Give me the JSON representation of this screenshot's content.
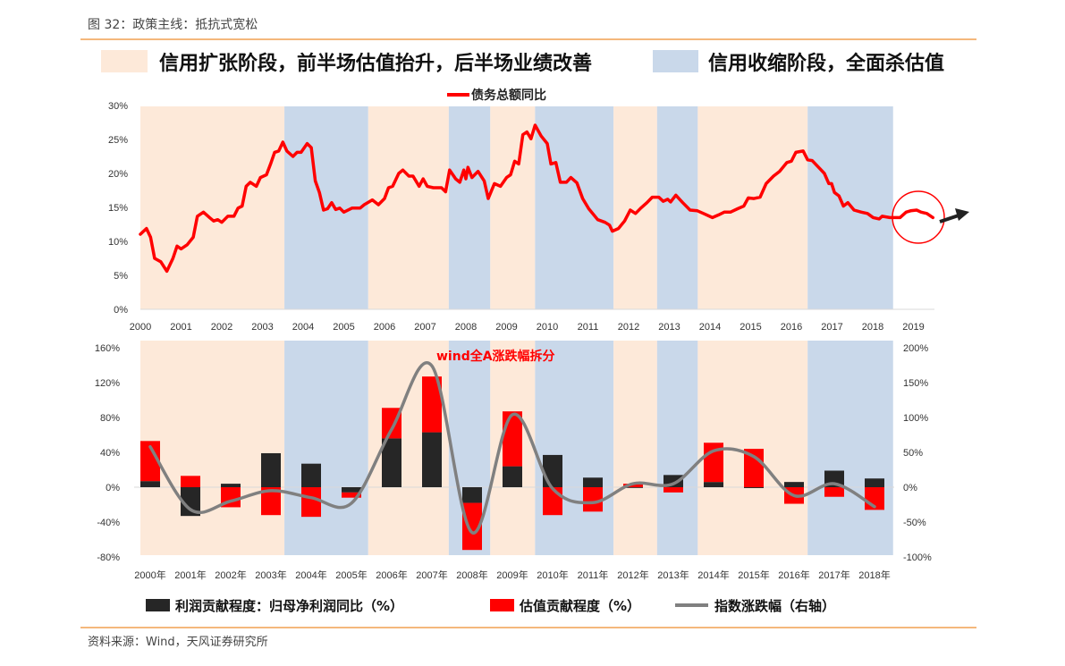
{
  "header": {
    "figure_title": "图 32：政策主线：抵抗式宽松",
    "source": "资料来源：Wind，天风证券研究所"
  },
  "banner": {
    "expansion_label": "信用扩张阶段，前半场估值抬升，后半场业绩改善",
    "contraction_label": "信用收缩阶段，全面杀估值",
    "expansion_color": "#fde9d9",
    "contraction_color": "#c9d8ea"
  },
  "chart_data": [
    {
      "type": "line",
      "legend": "债务总额同比",
      "legend_placement": "top-center",
      "color": "#ff0000",
      "xlim": [
        2000,
        2019.6
      ],
      "ylim": [
        0,
        30
      ],
      "x_ticks": [
        "2000",
        "2001",
        "2002",
        "2003",
        "2004",
        "2005",
        "2006",
        "2007",
        "2008",
        "2009",
        "2010",
        "2011",
        "2012",
        "2013",
        "2014",
        "2015",
        "2016",
        "2017",
        "2018",
        "2019"
      ],
      "y_ticks": [
        "0%",
        "5%",
        "10%",
        "15%",
        "20%",
        "25%",
        "30%"
      ],
      "y_unit": "%",
      "grid": false,
      "shaded_periods": [
        {
          "phase": "expansion",
          "from": 2000,
          "to": 2003.54
        },
        {
          "phase": "contraction",
          "from": 2003.54,
          "to": 2005.6
        },
        {
          "phase": "expansion",
          "from": 2005.6,
          "to": 2007.58
        },
        {
          "phase": "contraction",
          "from": 2007.58,
          "to": 2008.6
        },
        {
          "phase": "expansion",
          "from": 2008.6,
          "to": 2009.7
        },
        {
          "phase": "contraction",
          "from": 2009.7,
          "to": 2011.63
        },
        {
          "phase": "expansion",
          "from": 2011.63,
          "to": 2012.7
        },
        {
          "phase": "contraction",
          "from": 2012.7,
          "to": 2013.7
        },
        {
          "phase": "expansion",
          "from": 2013.7,
          "to": 2016.4
        },
        {
          "phase": "contraction",
          "from": 2016.4,
          "to": 2018.5
        }
      ],
      "points": [
        [
          2000.0,
          11.05
        ],
        [
          2000.15,
          11.9
        ],
        [
          2000.25,
          10.6
        ],
        [
          2000.35,
          7.5
        ],
        [
          2000.5,
          7.0
        ],
        [
          2000.65,
          5.6
        ],
        [
          2000.8,
          7.5
        ],
        [
          2000.9,
          9.3
        ],
        [
          2001.0,
          8.9
        ],
        [
          2001.15,
          9.5
        ],
        [
          2001.3,
          10.6
        ],
        [
          2001.4,
          13.7
        ],
        [
          2001.55,
          14.3
        ],
        [
          2001.7,
          13.5
        ],
        [
          2001.8,
          13.0
        ],
        [
          2001.9,
          13.2
        ],
        [
          2002.0,
          12.8
        ],
        [
          2002.15,
          13.7
        ],
        [
          2002.3,
          13.7
        ],
        [
          2002.4,
          14.9
        ],
        [
          2002.5,
          15.2
        ],
        [
          2002.6,
          18.1
        ],
        [
          2002.7,
          18.7
        ],
        [
          2002.85,
          18.1
        ],
        [
          2002.95,
          19.4
        ],
        [
          2003.1,
          19.8
        ],
        [
          2003.2,
          21.4
        ],
        [
          2003.3,
          23.1
        ],
        [
          2003.4,
          23.3
        ],
        [
          2003.5,
          24.6
        ],
        [
          2003.6,
          23.3
        ],
        [
          2003.75,
          22.5
        ],
        [
          2003.85,
          23.1
        ],
        [
          2003.95,
          23.1
        ],
        [
          2004.1,
          24.4
        ],
        [
          2004.2,
          23.8
        ],
        [
          2004.3,
          18.9
        ],
        [
          2004.4,
          17.2
        ],
        [
          2004.5,
          14.6
        ],
        [
          2004.6,
          14.8
        ],
        [
          2004.7,
          15.7
        ],
        [
          2004.8,
          14.7
        ],
        [
          2004.9,
          14.9
        ],
        [
          2005.0,
          14.3
        ],
        [
          2005.2,
          14.9
        ],
        [
          2005.4,
          14.9
        ],
        [
          2005.5,
          15.4
        ],
        [
          2005.7,
          16.1
        ],
        [
          2005.85,
          15.4
        ],
        [
          2006.0,
          16.3
        ],
        [
          2006.1,
          17.9
        ],
        [
          2006.2,
          18.1
        ],
        [
          2006.35,
          20.0
        ],
        [
          2006.45,
          20.5
        ],
        [
          2006.6,
          19.6
        ],
        [
          2006.7,
          19.6
        ],
        [
          2006.85,
          18.1
        ],
        [
          2006.95,
          19.2
        ],
        [
          2007.05,
          18.1
        ],
        [
          2007.2,
          17.9
        ],
        [
          2007.4,
          17.9
        ],
        [
          2007.5,
          17.3
        ],
        [
          2007.6,
          20.5
        ],
        [
          2007.75,
          19.2
        ],
        [
          2007.85,
          18.7
        ],
        [
          2007.95,
          20.5
        ],
        [
          2008.0,
          19.2
        ],
        [
          2008.05,
          20.9
        ],
        [
          2008.15,
          19.4
        ],
        [
          2008.3,
          20.3
        ],
        [
          2008.45,
          18.9
        ],
        [
          2008.55,
          16.3
        ],
        [
          2008.7,
          18.5
        ],
        [
          2008.85,
          18.1
        ],
        [
          2009.0,
          19.4
        ],
        [
          2009.1,
          19.8
        ],
        [
          2009.2,
          21.8
        ],
        [
          2009.3,
          21.4
        ],
        [
          2009.4,
          25.7
        ],
        [
          2009.5,
          26.1
        ],
        [
          2009.6,
          25.1
        ],
        [
          2009.7,
          27.1
        ],
        [
          2009.85,
          25.5
        ],
        [
          2010.0,
          24.4
        ],
        [
          2010.09,
          21.4
        ],
        [
          2010.21,
          21.6
        ],
        [
          2010.32,
          18.7
        ],
        [
          2010.47,
          18.7
        ],
        [
          2010.58,
          19.4
        ],
        [
          2010.73,
          18.6
        ],
        [
          2010.87,
          16.3
        ],
        [
          2011.02,
          14.8
        ],
        [
          2011.24,
          13.2
        ],
        [
          2011.42,
          12.8
        ],
        [
          2011.53,
          12.4
        ],
        [
          2011.6,
          11.5
        ],
        [
          2011.75,
          11.9
        ],
        [
          2011.9,
          13.0
        ],
        [
          2012.04,
          14.6
        ],
        [
          2012.17,
          14.1
        ],
        [
          2012.3,
          14.9
        ],
        [
          2012.45,
          15.7
        ],
        [
          2012.58,
          16.5
        ],
        [
          2012.74,
          16.5
        ],
        [
          2012.85,
          15.9
        ],
        [
          2012.96,
          16.2
        ],
        [
          2013.03,
          15.8
        ],
        [
          2013.16,
          16.8
        ],
        [
          2013.33,
          15.7
        ],
        [
          2013.51,
          14.6
        ],
        [
          2013.69,
          14.5
        ],
        [
          2013.84,
          14.1
        ],
        [
          2014.06,
          13.5
        ],
        [
          2014.21,
          13.9
        ],
        [
          2014.35,
          14.3
        ],
        [
          2014.5,
          14.3
        ],
        [
          2014.68,
          14.8
        ],
        [
          2014.83,
          15.2
        ],
        [
          2014.94,
          16.4
        ],
        [
          2015.08,
          16.3
        ],
        [
          2015.23,
          16.5
        ],
        [
          2015.38,
          18.5
        ],
        [
          2015.56,
          19.6
        ],
        [
          2015.71,
          20.3
        ],
        [
          2015.89,
          21.6
        ],
        [
          2016.0,
          21.8
        ],
        [
          2016.11,
          23.1
        ],
        [
          2016.29,
          23.3
        ],
        [
          2016.4,
          22.0
        ],
        [
          2016.51,
          21.9
        ],
        [
          2016.7,
          20.7
        ],
        [
          2016.81,
          20.0
        ],
        [
          2016.92,
          18.5
        ],
        [
          2016.99,
          18.5
        ],
        [
          2017.06,
          17.2
        ],
        [
          2017.17,
          16.7
        ],
        [
          2017.28,
          15.2
        ],
        [
          2017.39,
          15.7
        ],
        [
          2017.54,
          14.6
        ],
        [
          2017.72,
          14.3
        ],
        [
          2017.87,
          14.1
        ],
        [
          2018.01,
          13.5
        ],
        [
          2018.16,
          13.3
        ],
        [
          2018.23,
          13.7
        ],
        [
          2018.42,
          13.5
        ],
        [
          2018.67,
          13.5
        ],
        [
          2018.82,
          14.3
        ],
        [
          2018.93,
          14.5
        ],
        [
          2019.08,
          14.6
        ],
        [
          2019.19,
          14.3
        ],
        [
          2019.33,
          14.1
        ],
        [
          2019.48,
          13.5
        ]
      ],
      "annotation": "circle around 2019 values with arrow pointing up-right"
    },
    {
      "type": "bar",
      "title": "wind全A涨跌幅拆分",
      "stacked": true,
      "categories": [
        "2000年",
        "2001年",
        "2002年",
        "2003年",
        "2004年",
        "2005年",
        "2006年",
        "2007年",
        "2008年",
        "2009年",
        "2010年",
        "2011年",
        "2012年",
        "2013年",
        "2014年",
        "2015年",
        "2016年",
        "2017年",
        "2018年"
      ],
      "ylim_left": [
        -80,
        160
      ],
      "y_ticks_left": [
        "-80%",
        "-40%",
        "0%",
        "40%",
        "80%",
        "120%",
        "160%"
      ],
      "ylim_right": [
        -100,
        200
      ],
      "y_ticks_right": [
        "-100%",
        "-50%",
        "0%",
        "50%",
        "100%",
        "150%",
        "200%"
      ],
      "grid": false,
      "legend_placement": "bottom",
      "series": [
        {
          "name": "利润贡献程度：归母净利润同比（%）",
          "kind": "bar",
          "axis": "left",
          "color": "#262626",
          "values": [
            7,
            -33,
            4,
            39,
            27,
            -6,
            56,
            63,
            -18,
            24,
            37,
            11,
            0,
            14,
            6,
            -1,
            6,
            19,
            10
          ]
        },
        {
          "name": "估值贡献程度（%）",
          "kind": "bar",
          "axis": "left",
          "color": "#ff0000",
          "values": [
            46,
            13,
            -23,
            -32,
            -34,
            -6,
            35,
            64,
            -54,
            63,
            -32,
            -28,
            4,
            -6,
            45,
            44,
            -19,
            -11,
            -26
          ]
        },
        {
          "name": "指数涨跌幅（右轴）",
          "kind": "line",
          "axis": "right",
          "color": "#808080",
          "values": [
            58,
            -32,
            -20,
            -5,
            -15,
            -23,
            83,
            174,
            -65,
            104,
            -2,
            -22,
            5,
            5,
            52,
            44,
            -12,
            5,
            -28
          ]
        }
      ]
    }
  ]
}
